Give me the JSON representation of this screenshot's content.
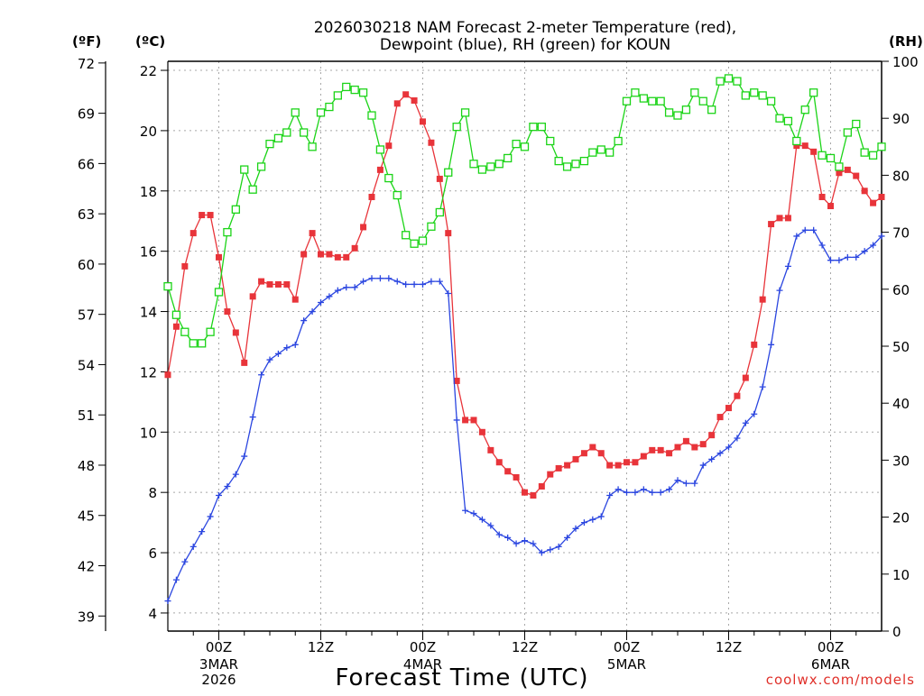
{
  "title_line1": "2026030218 NAM Forecast 2-meter Temperature (red),",
  "title_line2": "Dewpoint (blue), RH (green) for KOUN",
  "xlabel": "Forecast Time (UTC)",
  "credit": "coolwx.com/models",
  "units": {
    "fahrenheit": "(ºF)",
    "celsius": "(ºC)",
    "rh": "(RH)"
  },
  "colors": {
    "temperature": "#e8343a",
    "dewpoint": "#2b46e0",
    "rh": "#1bd417"
  },
  "chart_data": {
    "type": "line",
    "x_unit": "forecast hour from 2026030218 UTC",
    "x": [
      0,
      1,
      2,
      3,
      4,
      5,
      6,
      7,
      8,
      9,
      10,
      11,
      12,
      13,
      14,
      15,
      16,
      17,
      18,
      19,
      20,
      21,
      22,
      23,
      24,
      25,
      26,
      27,
      28,
      29,
      30,
      31,
      32,
      33,
      34,
      35,
      36,
      37,
      38,
      39,
      40,
      41,
      42,
      43,
      44,
      45,
      46,
      47,
      48,
      49,
      50,
      51,
      52,
      53,
      54,
      55,
      56,
      57,
      58,
      59,
      60,
      61,
      62,
      63,
      64,
      65,
      66,
      67,
      68,
      69,
      70,
      71,
      72,
      73,
      74,
      75,
      76,
      77,
      78,
      79,
      80,
      81,
      82,
      83,
      84
    ],
    "xlim": [
      0,
      84
    ],
    "x_tick_hours": [
      6,
      18,
      30,
      42,
      54,
      66,
      78
    ],
    "x_tick_labels": [
      "00Z",
      "12Z",
      "00Z",
      "12Z",
      "00Z",
      "12Z",
      "00Z"
    ],
    "x_date_labels": [
      {
        "hour": 6,
        "lines": [
          "3MAR",
          "2026"
        ]
      },
      {
        "hour": 30,
        "lines": [
          "4MAR"
        ]
      },
      {
        "hour": 54,
        "lines": [
          "5MAR"
        ]
      },
      {
        "hour": 78,
        "lines": [
          "6MAR"
        ]
      }
    ],
    "y_celsius": {
      "lim": [
        3.4,
        22.3
      ],
      "ticks": [
        4,
        6,
        8,
        10,
        12,
        14,
        16,
        18,
        20,
        22
      ]
    },
    "y_fahrenheit": {
      "lim": [
        38.1,
        72.1
      ],
      "ticks": [
        39,
        42,
        45,
        48,
        51,
        54,
        57,
        60,
        63,
        66,
        69,
        72
      ]
    },
    "y_rh": {
      "lim": [
        0,
        100
      ],
      "ticks": [
        0,
        10,
        20,
        30,
        40,
        50,
        60,
        70,
        80,
        90,
        100
      ]
    },
    "series": [
      {
        "name": "Temperature",
        "unit": "C",
        "axis": "celsius",
        "color": "#e8343a",
        "marker": "filled-square",
        "values": [
          11.9,
          13.5,
          15.5,
          16.6,
          17.2,
          17.2,
          15.8,
          14.0,
          13.3,
          12.3,
          14.5,
          15.0,
          14.9,
          14.9,
          14.9,
          14.4,
          15.9,
          16.6,
          15.9,
          15.9,
          15.8,
          15.8,
          16.1,
          16.8,
          17.8,
          18.7,
          19.5,
          20.9,
          21.2,
          21.0,
          20.3,
          19.6,
          18.4,
          16.6,
          11.7,
          10.4,
          10.4,
          10.0,
          9.4,
          9.0,
          8.7,
          8.5,
          8.0,
          7.9,
          8.2,
          8.6,
          8.8,
          8.9,
          9.1,
          9.3,
          9.5,
          9.3,
          8.9,
          8.9,
          9.0,
          9.0,
          9.2,
          9.4,
          9.4,
          9.3,
          9.5,
          9.7,
          9.5,
          9.6,
          9.9,
          10.5,
          10.8,
          11.2,
          11.8,
          12.9,
          14.4,
          16.9,
          17.1,
          17.1,
          19.5,
          19.5,
          19.3,
          17.8,
          17.5,
          18.6,
          18.7,
          18.5,
          18.0,
          17.6,
          17.8
        ]
      },
      {
        "name": "Dewpoint",
        "unit": "C",
        "axis": "celsius",
        "color": "#2b46e0",
        "marker": "plus",
        "values": [
          4.4,
          5.1,
          5.7,
          6.2,
          6.7,
          7.2,
          7.9,
          8.2,
          8.6,
          9.2,
          10.5,
          11.9,
          12.4,
          12.6,
          12.8,
          12.9,
          13.7,
          14.0,
          14.3,
          14.5,
          14.7,
          14.8,
          14.8,
          15.0,
          15.1,
          15.1,
          15.1,
          15.0,
          14.9,
          14.9,
          14.9,
          15.0,
          15.0,
          14.6,
          10.4,
          7.4,
          7.3,
          7.1,
          6.9,
          6.6,
          6.5,
          6.3,
          6.4,
          6.3,
          6.0,
          6.1,
          6.2,
          6.5,
          6.8,
          7.0,
          7.1,
          7.2,
          7.9,
          8.1,
          8.0,
          8.0,
          8.1,
          8.0,
          8.0,
          8.1,
          8.4,
          8.3,
          8.3,
          8.9,
          9.1,
          9.3,
          9.5,
          9.8,
          10.3,
          10.6,
          11.5,
          12.9,
          14.7,
          15.5,
          16.5,
          16.7,
          16.7,
          16.2,
          15.7,
          15.7,
          15.8,
          15.8,
          16.0,
          16.2,
          16.5
        ]
      },
      {
        "name": "RH",
        "unit": "%",
        "axis": "rh",
        "color": "#1bd417",
        "marker": "open-square",
        "values": [
          60.5,
          55.5,
          52.5,
          50.5,
          50.5,
          52.5,
          59.5,
          70.0,
          74.0,
          81.0,
          77.5,
          81.5,
          85.5,
          86.5,
          87.5,
          91.0,
          87.5,
          85.0,
          91.0,
          92.0,
          94.0,
          95.5,
          95.0,
          94.5,
          90.5,
          84.5,
          79.5,
          76.5,
          69.5,
          68.0,
          68.5,
          71.0,
          73.5,
          80.5,
          88.5,
          91.0,
          82.0,
          81.0,
          81.5,
          82.0,
          83.0,
          85.5,
          85.0,
          88.5,
          88.5,
          86.0,
          82.5,
          81.5,
          82.0,
          82.5,
          84.0,
          84.5,
          84.0,
          86.0,
          93.0,
          94.5,
          93.5,
          93.0,
          93.0,
          91.0,
          90.5,
          91.5,
          94.5,
          93.0,
          91.5,
          96.5,
          97.0,
          96.5,
          94.0,
          94.5,
          94.0,
          93.0,
          90.0,
          89.5,
          86.0,
          91.5,
          94.5,
          83.5,
          83.0,
          81.5,
          87.5,
          89.0,
          84.0,
          83.5,
          85.0
        ]
      }
    ]
  }
}
